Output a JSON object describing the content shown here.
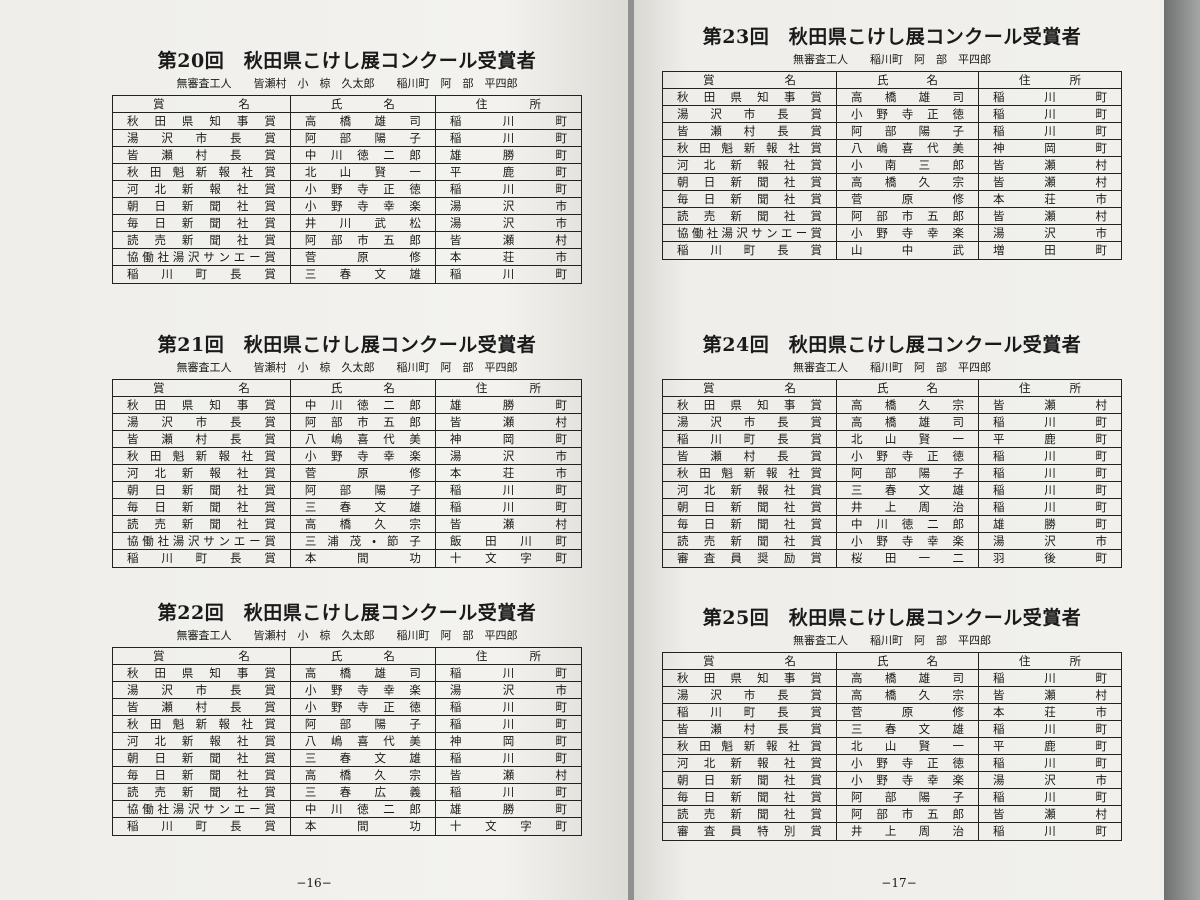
{
  "pages": [
    {
      "sections": [
        {
          "title": "第20回　秋田県こけし展コンクール受賞者",
          "subtitle": "無審査工人　　皆瀬村　小　椋　久太郎　　稲川町　阿　部　平四郎",
          "header": [
            "賞名",
            "氏名",
            "住所"
          ],
          "rows": [
            [
              "秋田県知事賞",
              "高橋雄司",
              "稲川町"
            ],
            [
              "湯沢市長賞",
              "阿部陽子",
              "稲川町"
            ],
            [
              "皆瀬村長賞",
              "中川徳二郎",
              "雄勝町"
            ],
            [
              "秋田魁新報社賞",
              "北山賢一",
              "平鹿町"
            ],
            [
              "河北新報社賞",
              "小野寺正徳",
              "稲川町"
            ],
            [
              "朝日新聞社賞",
              "小野寺幸楽",
              "湯沢市"
            ],
            [
              "毎日新聞社賞",
              "井川武松",
              "湯沢市"
            ],
            [
              "読売新聞社賞",
              "阿部市五郎",
              "皆瀬村"
            ],
            [
              "協働社湯沢サンエー賞",
              "菅原修",
              "本荘市"
            ],
            [
              "稲川町長賞",
              "三春文雄",
              "稲川町"
            ]
          ]
        },
        {
          "title": "第21回　秋田県こけし展コンクール受賞者",
          "subtitle": "無審査工人　　皆瀬村　小　椋　久太郎　　稲川町　阿　部　平四郎",
          "header": [
            "賞名",
            "氏名",
            "住所"
          ],
          "rows": [
            [
              "秋田県知事賞",
              "中川徳二郎",
              "雄勝町"
            ],
            [
              "湯沢市長賞",
              "阿部市五郎",
              "皆瀬村"
            ],
            [
              "皆瀬村長賞",
              "八嶋喜代美",
              "神岡町"
            ],
            [
              "秋田魁新報社賞",
              "小野寺幸楽",
              "湯沢市"
            ],
            [
              "河北新報社賞",
              "菅原修",
              "本荘市"
            ],
            [
              "朝日新聞社賞",
              "阿部陽子",
              "稲川町"
            ],
            [
              "毎日新聞社賞",
              "三春文雄",
              "稲川町"
            ],
            [
              "読売新聞社賞",
              "高橋久宗",
              "皆瀬村"
            ],
            [
              "協働社湯沢サンエー賞",
              "三浦茂・節子",
              "飯田川町"
            ],
            [
              "稲川町長賞",
              "本間功",
              "十文字町"
            ]
          ]
        },
        {
          "title": "第22回　秋田県こけし展コンクール受賞者",
          "subtitle": "無審査工人　　皆瀬村　小　椋　久太郎　　稲川町　阿　部　平四郎",
          "header": [
            "賞名",
            "氏名",
            "住所"
          ],
          "rows": [
            [
              "秋田県知事賞",
              "高橋雄司",
              "稲川町"
            ],
            [
              "湯沢市長賞",
              "小野寺幸楽",
              "湯沢市"
            ],
            [
              "皆瀬村長賞",
              "小野寺正徳",
              "稲川町"
            ],
            [
              "秋田魁新報社賞",
              "阿部陽子",
              "稲川町"
            ],
            [
              "河北新報社賞",
              "八嶋喜代美",
              "神岡町"
            ],
            [
              "朝日新聞社賞",
              "三春文雄",
              "稲川町"
            ],
            [
              "毎日新聞社賞",
              "高橋久宗",
              "皆瀬村"
            ],
            [
              "読売新聞社賞",
              "三春広義",
              "稲川町"
            ],
            [
              "協働社湯沢サンエー賞",
              "中川徳二郎",
              "雄勝町"
            ],
            [
              "稲川町長賞",
              "本間功",
              "十文字町"
            ]
          ]
        }
      ],
      "page_number": "−16−"
    },
    {
      "sections": [
        {
          "title": "第23回　秋田県こけし展コンクール受賞者",
          "subtitle": "無審査工人　　稲川町　阿　部　平四郎",
          "header": [
            "賞名",
            "氏名",
            "住所"
          ],
          "rows": [
            [
              "秋田県知事賞",
              "高橋雄司",
              "稲川町"
            ],
            [
              "湯沢市長賞",
              "小野寺正徳",
              "稲川町"
            ],
            [
              "皆瀬村長賞",
              "阿部陽子",
              "稲川町"
            ],
            [
              "秋田魁新報社賞",
              "八嶋喜代美",
              "神岡町"
            ],
            [
              "河北新報社賞",
              "小南三郎",
              "皆瀬村"
            ],
            [
              "朝日新聞社賞",
              "高橋久宗",
              "皆瀬村"
            ],
            [
              "毎日新聞社賞",
              "菅原修",
              "本荘市"
            ],
            [
              "読売新聞社賞",
              "阿部市五郎",
              "皆瀬村"
            ],
            [
              "協働社湯沢サンエー賞",
              "小野寺幸楽",
              "湯沢市"
            ],
            [
              "稲川町長賞",
              "山中武",
              "増田町"
            ]
          ]
        },
        {
          "title": "第24回　秋田県こけし展コンクール受賞者",
          "subtitle": "無審査工人　　稲川町　阿　部　平四郎",
          "header": [
            "賞名",
            "氏名",
            "住所"
          ],
          "rows": [
            [
              "秋田県知事賞",
              "高橋久宗",
              "皆瀬村"
            ],
            [
              "湯沢市長賞",
              "高橋雄司",
              "稲川町"
            ],
            [
              "稲川町長賞",
              "北山賢一",
              "平鹿町"
            ],
            [
              "皆瀬村長賞",
              "小野寺正徳",
              "稲川町"
            ],
            [
              "秋田魁新報社賞",
              "阿部陽子",
              "稲川町"
            ],
            [
              "河北新報社賞",
              "三春文雄",
              "稲川町"
            ],
            [
              "朝日新聞社賞",
              "井上周治",
              "稲川町"
            ],
            [
              "毎日新聞社賞",
              "中川徳二郎",
              "雄勝町"
            ],
            [
              "読売新聞社賞",
              "小野寺幸楽",
              "湯沢市"
            ],
            [
              "審査員奨励賞",
              "桜田一二",
              "羽後町"
            ]
          ]
        },
        {
          "title": "第25回　秋田県こけし展コンクール受賞者",
          "subtitle": "無審査工人　　稲川町　阿　部　平四郎",
          "header": [
            "賞名",
            "氏名",
            "住所"
          ],
          "rows": [
            [
              "秋田県知事賞",
              "高橋雄司",
              "稲川町"
            ],
            [
              "湯沢市長賞",
              "高橋久宗",
              "皆瀬村"
            ],
            [
              "稲川町長賞",
              "菅原修",
              "本荘市"
            ],
            [
              "皆瀬村長賞",
              "三春文雄",
              "稲川町"
            ],
            [
              "秋田魁新報社賞",
              "北山賢一",
              "平鹿町"
            ],
            [
              "河北新報社賞",
              "小野寺正徳",
              "稲川町"
            ],
            [
              "朝日新聞社賞",
              "小野寺幸楽",
              "湯沢市"
            ],
            [
              "毎日新聞社賞",
              "阿部陽子",
              "稲川町"
            ],
            [
              "読売新聞社賞",
              "阿部市五郎",
              "皆瀬村"
            ],
            [
              "審査員特別賞",
              "井上周治",
              "稲川町"
            ]
          ]
        }
      ],
      "page_number": "−17−"
    }
  ]
}
